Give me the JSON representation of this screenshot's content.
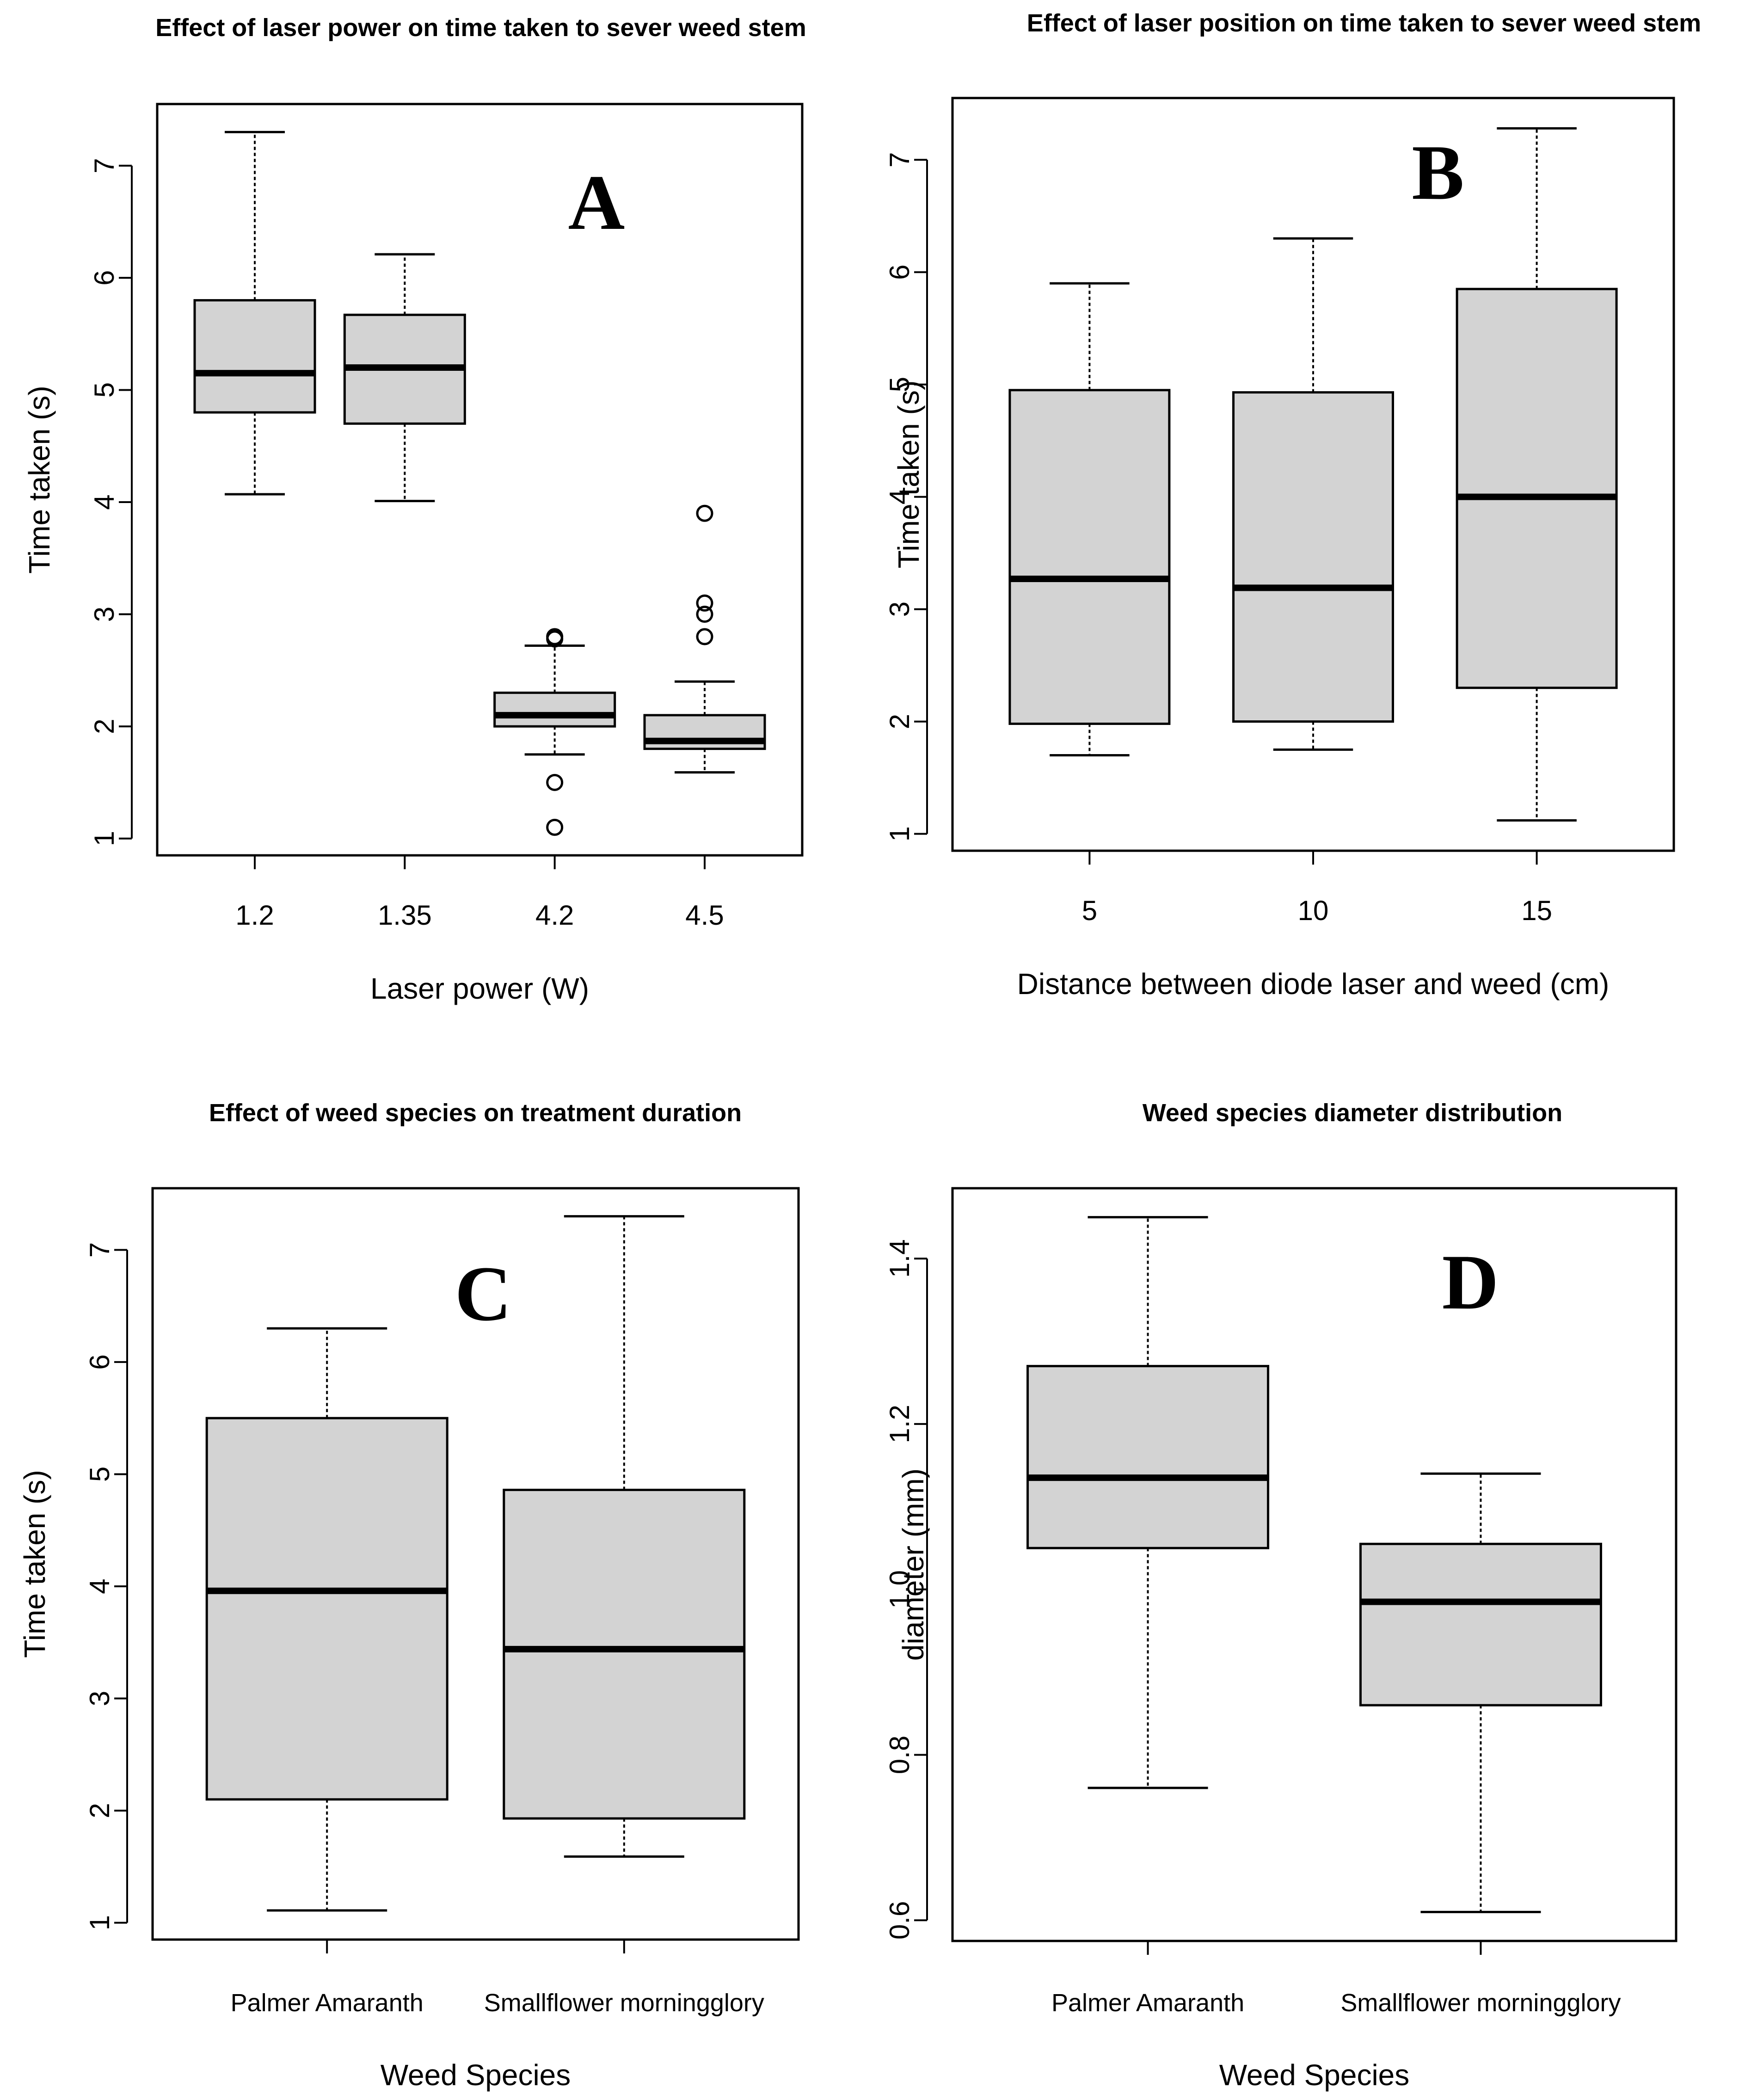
{
  "chart_data": [
    {
      "panel": "A",
      "type": "boxplot",
      "title": "Effect of laser power on time taken to sever weed stem",
      "xlabel": "Laser power (W)",
      "ylabel": "Time taken (s)",
      "ylim": [
        0.85,
        7.55
      ],
      "yticks": [
        1,
        2,
        3,
        4,
        5,
        6,
        7
      ],
      "categories": [
        "1.2",
        "1.35",
        "4.2",
        "4.5"
      ],
      "boxes": [
        {
          "min": 4.07,
          "q1": 4.8,
          "median": 5.15,
          "q3": 5.8,
          "max": 7.3,
          "outliers": []
        },
        {
          "min": 4.01,
          "q1": 4.7,
          "median": 5.2,
          "q3": 5.67,
          "max": 6.21,
          "outliers": []
        },
        {
          "min": 1.75,
          "q1": 2.0,
          "median": 2.1,
          "q3": 2.3,
          "max": 2.72,
          "outliers": [
            2.8,
            2.78,
            1.5,
            1.1
          ]
        },
        {
          "min": 1.59,
          "q1": 1.8,
          "median": 1.87,
          "q3": 2.1,
          "max": 2.4,
          "outliers": [
            3.9,
            3.1,
            3.0,
            2.8
          ]
        }
      ]
    },
    {
      "panel": "B",
      "type": "boxplot",
      "title": "Effect of laser position on time taken to sever weed stem",
      "xlabel": "Distance between diode laser and weed (cm)",
      "ylabel": "Time taken (s)",
      "ylim": [
        0.85,
        7.55
      ],
      "yticks": [
        1,
        2,
        3,
        4,
        5,
        6,
        7
      ],
      "categories": [
        "5",
        "10",
        "15"
      ],
      "boxes": [
        {
          "min": 1.7,
          "q1": 1.98,
          "median": 3.27,
          "q3": 4.95,
          "max": 5.9,
          "outliers": []
        },
        {
          "min": 1.75,
          "q1": 2.0,
          "median": 3.19,
          "q3": 4.93,
          "max": 6.3,
          "outliers": []
        },
        {
          "min": 1.12,
          "q1": 2.3,
          "median": 4.0,
          "q3": 5.85,
          "max": 7.28,
          "outliers": []
        }
      ]
    },
    {
      "panel": "C",
      "type": "boxplot",
      "title": "Effect of weed species on treatment duration",
      "xlabel": "Weed Species",
      "ylabel": "Time taken (s)",
      "ylim": [
        0.85,
        7.55
      ],
      "yticks": [
        1,
        2,
        3,
        4,
        5,
        6,
        7
      ],
      "categories": [
        "Palmer Amaranth",
        "Smallflower morningglory"
      ],
      "boxes": [
        {
          "min": 1.11,
          "q1": 2.1,
          "median": 3.96,
          "q3": 5.5,
          "max": 6.3,
          "outliers": []
        },
        {
          "min": 1.59,
          "q1": 1.93,
          "median": 3.44,
          "q3": 4.86,
          "max": 7.3,
          "outliers": []
        }
      ]
    },
    {
      "panel": "D",
      "type": "boxplot",
      "title": "Weed species diameter distribution",
      "xlabel": "Weed Species",
      "ylabel": "diameter (mm)",
      "ylim": [
        0.575,
        1.485
      ],
      "yticks": [
        0.6,
        0.8,
        1.0,
        1.2,
        1.4
      ],
      "ytick_labels": [
        "0.6",
        "0.8",
        "1.0",
        "1.2",
        "1.4"
      ],
      "categories": [
        "Palmer Amaranth",
        "Smallflower morningglory"
      ],
      "boxes": [
        {
          "min": 0.76,
          "q1": 1.05,
          "median": 1.135,
          "q3": 1.27,
          "max": 1.45,
          "outliers": []
        },
        {
          "min": 0.61,
          "q1": 0.86,
          "median": 0.985,
          "q3": 1.055,
          "max": 1.14,
          "outliers": []
        }
      ]
    }
  ]
}
